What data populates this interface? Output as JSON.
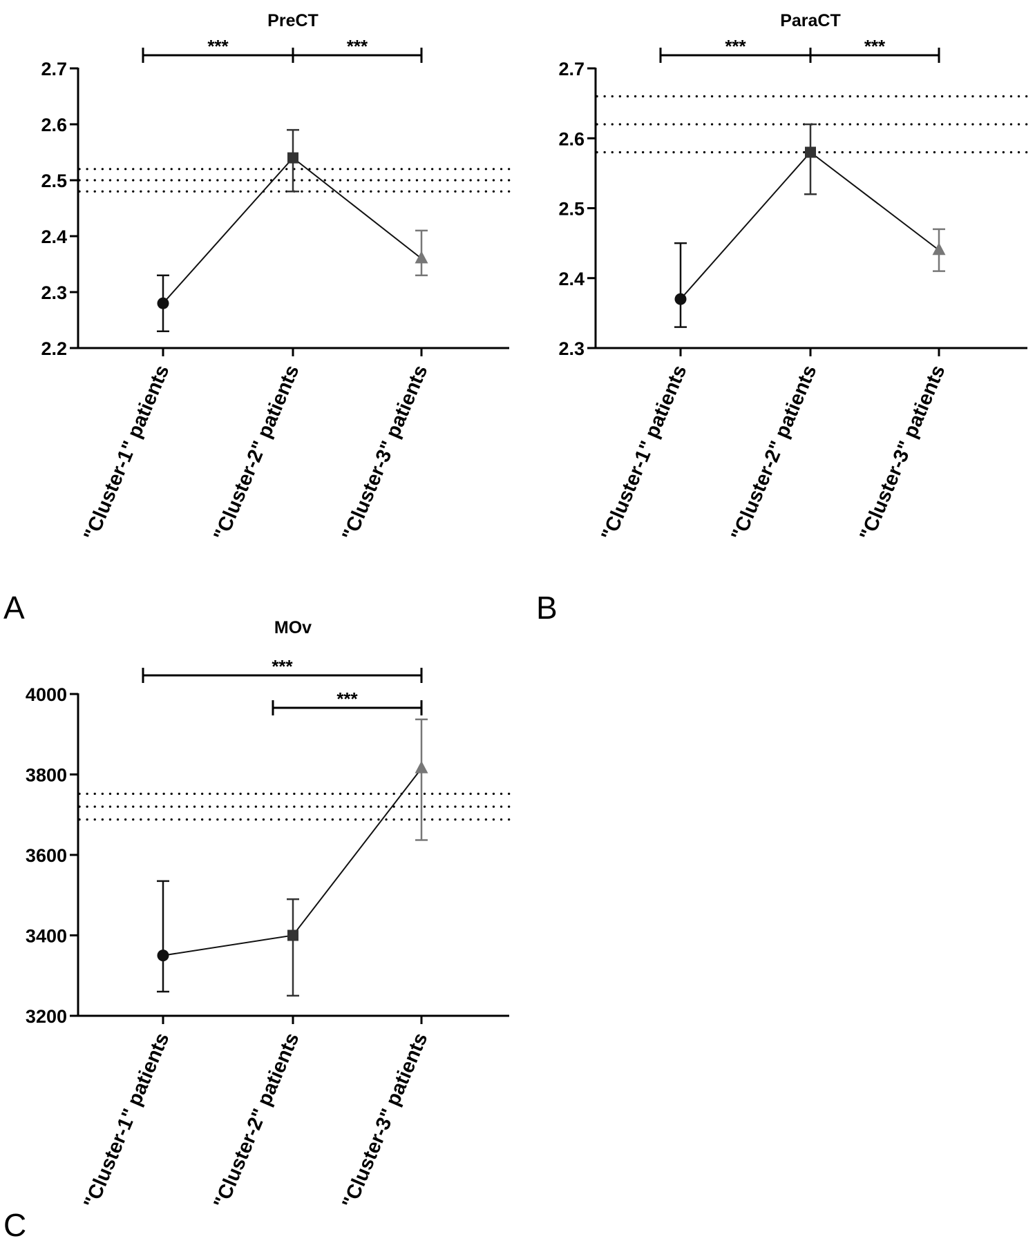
{
  "chart_data": [
    {
      "panel": "A",
      "type": "line",
      "title": "PreCT",
      "categories": [
        "\"Cluster-1\" patients",
        "\"Cluster-2\" patients",
        "\"Cluster-3\" patients"
      ],
      "ylim": [
        2.2,
        2.7
      ],
      "yticks": [
        "2.2",
        "2.3",
        "2.4",
        "2.5",
        "2.6",
        "2.7"
      ],
      "yticks_values": [
        2.2,
        2.3,
        2.4,
        2.5,
        2.6,
        2.7
      ],
      "points": [
        {
          "value": 2.28,
          "lower": 2.23,
          "upper": 2.33,
          "marker": "circle",
          "color": "#111111"
        },
        {
          "value": 2.54,
          "lower": 2.48,
          "upper": 2.59,
          "marker": "square",
          "color": "#333333"
        },
        {
          "value": 2.36,
          "lower": 2.33,
          "upper": 2.41,
          "marker": "triangle",
          "color": "#777777"
        }
      ],
      "reference_lines": [
        2.48,
        2.5,
        2.52
      ],
      "significance": [
        {
          "from": 0,
          "to": 1,
          "label": "***",
          "tier": 0
        },
        {
          "from": 1,
          "to": 2,
          "label": "***",
          "tier": 0
        }
      ]
    },
    {
      "panel": "B",
      "type": "line",
      "title": "ParaCT",
      "categories": [
        "\"Cluster-1\" patients",
        "\"Cluster-2\" patients",
        "\"Cluster-3\" patients"
      ],
      "ylim": [
        2.3,
        2.7
      ],
      "yticks": [
        "2.3",
        "2.4",
        "2.5",
        "2.6",
        "2.7"
      ],
      "yticks_values": [
        2.3,
        2.4,
        2.5,
        2.6,
        2.7
      ],
      "points": [
        {
          "value": 2.37,
          "lower": 2.33,
          "upper": 2.45,
          "marker": "circle",
          "color": "#111111"
        },
        {
          "value": 2.58,
          "lower": 2.52,
          "upper": 2.62,
          "marker": "square",
          "color": "#333333"
        },
        {
          "value": 2.44,
          "lower": 2.41,
          "upper": 2.47,
          "marker": "triangle",
          "color": "#777777"
        }
      ],
      "reference_lines": [
        2.58,
        2.62,
        2.66
      ],
      "significance": [
        {
          "from": 0,
          "to": 1,
          "label": "***",
          "tier": 0
        },
        {
          "from": 1,
          "to": 2,
          "label": "***",
          "tier": 0
        }
      ]
    },
    {
      "panel": "C",
      "type": "line",
      "title": "MOv",
      "categories": [
        "\"Cluster-1\" patients",
        "\"Cluster-2\" patients",
        "\"Cluster-3\" patients"
      ],
      "ylim": [
        3200,
        4000
      ],
      "yticks": [
        "3200",
        "3400",
        "3600",
        "3800",
        "4000"
      ],
      "yticks_values": [
        3200,
        3400,
        3600,
        3800,
        4000
      ],
      "points": [
        {
          "value": 3350,
          "lower": 3260,
          "upper": 3535,
          "marker": "circle",
          "color": "#111111"
        },
        {
          "value": 3400,
          "lower": 3250,
          "upper": 3490,
          "marker": "square",
          "color": "#333333"
        },
        {
          "value": 3815,
          "lower": 3637,
          "upper": 3937,
          "marker": "triangle",
          "color": "#777777"
        }
      ],
      "reference_lines": [
        3688,
        3720,
        3752
      ],
      "significance": [
        {
          "from": 0,
          "to": 2,
          "label": "***",
          "tier": 1
        },
        {
          "from": 1,
          "to": 2,
          "label": "***",
          "tier": 0
        }
      ]
    }
  ]
}
